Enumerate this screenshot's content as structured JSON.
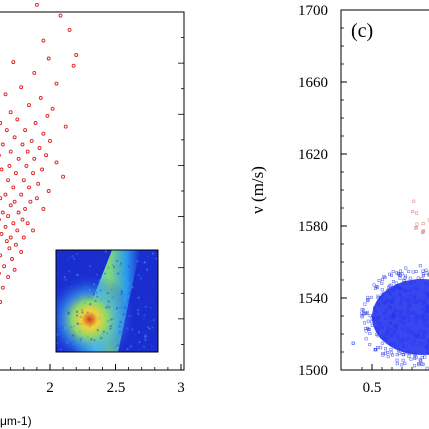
{
  "chart_data": [
    {
      "type": "scatter",
      "panel": "",
      "xlabel": "μm-1)",
      "ylabel": "",
      "xlim": [
        0.9,
        3.0
      ],
      "x_ticks": [
        "2",
        "2.5",
        "3"
      ],
      "x_tick_values": [
        2,
        2.5,
        3
      ],
      "series": [
        {
          "marker_color": "#dd2222",
          "marker": "open-circle",
          "points": [
            [
              1.95,
              0.92
            ],
            [
              1.72,
              0.86
            ],
            [
              1.88,
              0.83
            ],
            [
              2.05,
              0.8
            ],
            [
              1.78,
              0.79
            ],
            [
              1.66,
              0.77
            ],
            [
              1.93,
              0.76
            ],
            [
              1.6,
              0.75
            ],
            [
              1.84,
              0.74
            ],
            [
              2.02,
              0.73
            ],
            [
              1.7,
              0.72
            ],
            [
              1.98,
              0.71
            ],
            [
              1.75,
              0.7
            ],
            [
              1.62,
              0.69
            ],
            [
              1.89,
              0.69
            ],
            [
              2.12,
              0.68
            ],
            [
              1.67,
              0.67
            ],
            [
              1.81,
              0.67
            ],
            [
              1.95,
              0.66
            ],
            [
              1.57,
              0.65
            ],
            [
              1.73,
              0.65
            ],
            [
              1.86,
              0.64
            ],
            [
              2.0,
              0.64
            ],
            [
              1.64,
              0.63
            ],
            [
              1.79,
              0.63
            ],
            [
              1.92,
              0.62
            ],
            [
              1.55,
              0.62
            ],
            [
              1.7,
              0.61
            ],
            [
              1.83,
              0.61
            ],
            [
              1.97,
              0.6
            ],
            [
              1.61,
              0.6
            ],
            [
              1.76,
              0.59
            ],
            [
              1.88,
              0.59
            ],
            [
              2.05,
              0.58
            ],
            [
              1.58,
              0.58
            ],
            [
              1.69,
              0.57
            ],
            [
              1.82,
              0.57
            ],
            [
              1.94,
              0.56
            ],
            [
              1.63,
              0.56
            ],
            [
              1.74,
              0.55
            ],
            [
              1.87,
              0.55
            ],
            [
              2.1,
              0.54
            ],
            [
              1.56,
              0.54
            ],
            [
              1.68,
              0.53
            ],
            [
              1.8,
              0.53
            ],
            [
              1.91,
              0.52
            ],
            [
              1.6,
              0.52
            ],
            [
              1.72,
              0.51
            ],
            [
              1.84,
              0.51
            ],
            [
              1.99,
              0.5
            ],
            [
              1.57,
              0.5
            ],
            [
              1.66,
              0.49
            ],
            [
              1.78,
              0.49
            ],
            [
              1.9,
              0.48
            ],
            [
              1.62,
              0.48
            ],
            [
              1.73,
              0.47
            ],
            [
              1.85,
              0.47
            ],
            [
              1.59,
              0.46
            ],
            [
              1.7,
              0.46
            ],
            [
              1.81,
              0.45
            ],
            [
              1.95,
              0.45
            ],
            [
              1.64,
              0.44
            ],
            [
              1.76,
              0.44
            ],
            [
              1.56,
              0.43
            ],
            [
              1.68,
              0.43
            ],
            [
              1.79,
              0.42
            ],
            [
              1.61,
              0.42
            ],
            [
              1.72,
              0.41
            ],
            [
              1.83,
              0.41
            ],
            [
              1.58,
              0.4
            ],
            [
              1.66,
              0.4
            ],
            [
              1.75,
              0.39
            ],
            [
              1.87,
              0.39
            ],
            [
              1.63,
              0.38
            ],
            [
              1.7,
              0.37
            ],
            [
              1.8,
              0.37
            ],
            [
              1.57,
              0.36
            ],
            [
              1.67,
              0.36
            ],
            [
              1.74,
              0.35
            ],
            [
              1.6,
              0.34
            ],
            [
              1.69,
              0.34
            ],
            [
              1.78,
              0.33
            ],
            [
              1.62,
              0.32
            ],
            [
              1.71,
              0.31
            ],
            [
              1.58,
              0.3
            ],
            [
              1.65,
              0.29
            ],
            [
              1.73,
              0.28
            ],
            [
              1.61,
              0.27
            ],
            [
              1.68,
              0.26
            ],
            [
              1.59,
              0.25
            ],
            [
              1.64,
              0.23
            ],
            [
              1.57,
              0.21
            ],
            [
              1.62,
              0.19
            ],
            [
              2.15,
              0.95
            ],
            [
              2.2,
              0.88
            ],
            [
              1.9,
              1.02
            ],
            [
              2.08,
              0.99
            ],
            [
              1.55,
              0.82
            ],
            [
              2.18,
              0.85
            ],
            [
              1.99,
              0.87
            ]
          ]
        }
      ]
    },
    {
      "type": "scatter",
      "panel": "(c)",
      "xlabel": "",
      "ylabel": "ν (m/s)",
      "xlim": [
        0.3,
        1.0
      ],
      "ylim": [
        1500,
        1700
      ],
      "x_ticks": [
        "0.5"
      ],
      "x_tick_values": [
        0.5
      ],
      "y_ticks": [
        "1500",
        "1540",
        "1580",
        "1620",
        "1660",
        "1700"
      ],
      "y_tick_values": [
        1500,
        1540,
        1580,
        1620,
        1660,
        1700
      ],
      "series": [
        {
          "marker_color": "#2233ee",
          "marker": "open-square",
          "center_x": 0.92,
          "center_y": 1525,
          "spread_x": 0.09,
          "spread_y": 10
        }
      ]
    }
  ]
}
